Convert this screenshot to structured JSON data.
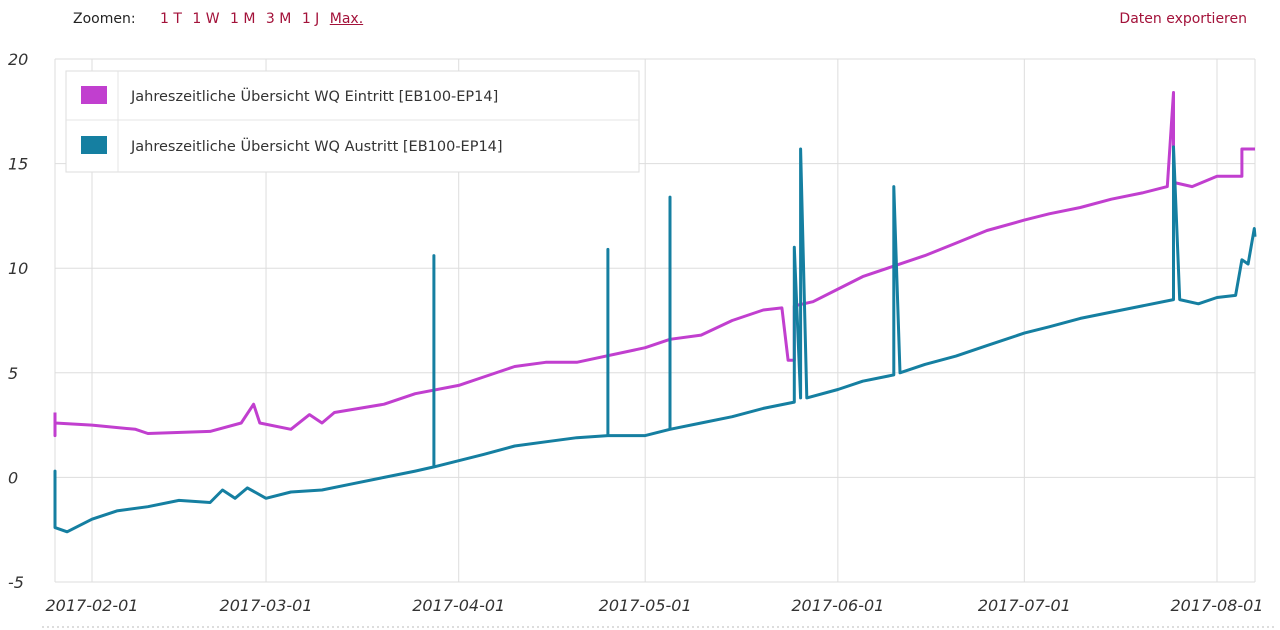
{
  "toolbar": {
    "zoom_label": "Zoomen:",
    "zoom_options": [
      "1 T",
      "1 W",
      "1 M",
      "3 M",
      "1 J",
      "Max."
    ],
    "active_zoom": "Max.",
    "export_label": "Daten exportieren"
  },
  "colors": {
    "link": "#a3123a",
    "series_eintritt": "#c13fcf",
    "series_austritt": "#157fa1",
    "grid": "#dddddd"
  },
  "chart_data": {
    "type": "line",
    "title": "",
    "xlabel": "",
    "ylabel": "",
    "ylim": [
      -5,
      20
    ],
    "yticks": [
      "20",
      "15",
      "10",
      "5",
      "0",
      "-5"
    ],
    "xticks": [
      "2017-02-01",
      "2017-03-01",
      "2017-04-01",
      "2017-05-01",
      "2017-06-01",
      "2017-07-01",
      "2017-08-01"
    ],
    "xrange": [
      "2017-01-22",
      "2017-08-03"
    ],
    "grid": true,
    "legend_position": "top-left",
    "series": [
      {
        "name": "Jahreszeitliche Übersicht WQ Eintritt [EB100-EP14]",
        "color": "#c13fcf",
        "points": [
          [
            "2017-01-22",
            3.1
          ],
          [
            "2017-01-23",
            2.2
          ],
          [
            "2017-01-24",
            2.5
          ],
          [
            "2017-01-25",
            2.0
          ],
          [
            "2017-01-26",
            2.6
          ],
          [
            "2017-02-01",
            2.5
          ],
          [
            "2017-02-08",
            2.3
          ],
          [
            "2017-02-10",
            2.1
          ],
          [
            "2017-02-20",
            2.2
          ],
          [
            "2017-02-25",
            2.6
          ],
          [
            "2017-02-27",
            3.5
          ],
          [
            "2017-02-28",
            2.6
          ],
          [
            "2017-03-05",
            2.3
          ],
          [
            "2017-03-08",
            3.0
          ],
          [
            "2017-03-10",
            2.6
          ],
          [
            "2017-03-12",
            3.1
          ],
          [
            "2017-03-20",
            3.5
          ],
          [
            "2017-03-25",
            4.0
          ],
          [
            "2017-04-01",
            4.4
          ],
          [
            "2017-04-05",
            4.8
          ],
          [
            "2017-04-10",
            5.3
          ],
          [
            "2017-04-15",
            5.5
          ],
          [
            "2017-04-20",
            5.5
          ],
          [
            "2017-05-01",
            6.2
          ],
          [
            "2017-05-05",
            6.6
          ],
          [
            "2017-05-10",
            6.8
          ],
          [
            "2017-05-15",
            7.5
          ],
          [
            "2017-05-20",
            8.0
          ],
          [
            "2017-05-23",
            8.1
          ],
          [
            "2017-05-24",
            5.6
          ],
          [
            "2017-05-25",
            5.6
          ],
          [
            "2017-05-25",
            8.2
          ],
          [
            "2017-05-28",
            8.4
          ],
          [
            "2017-06-01",
            9.0
          ],
          [
            "2017-06-05",
            9.6
          ],
          [
            "2017-06-10",
            10.1
          ],
          [
            "2017-06-15",
            10.6
          ],
          [
            "2017-06-20",
            11.2
          ],
          [
            "2017-06-25",
            11.8
          ],
          [
            "2017-07-01",
            12.3
          ],
          [
            "2017-07-05",
            12.6
          ],
          [
            "2017-07-10",
            12.9
          ],
          [
            "2017-07-15",
            13.3
          ],
          [
            "2017-07-20",
            13.6
          ],
          [
            "2017-07-24",
            13.9
          ],
          [
            "2017-07-25",
            18.4
          ],
          [
            "2017-07-25",
            14.1
          ],
          [
            "2017-07-28",
            13.9
          ],
          [
            "2017-08-01",
            14.4
          ],
          [
            "2017-08-05",
            14.4
          ],
          [
            "2017-08-05",
            15.7
          ],
          [
            "2017-08-08",
            15.7
          ]
        ]
      },
      {
        "name": "Jahreszeitliche Übersicht WQ Austritt [EB100-EP14]",
        "color": "#157fa1",
        "points": [
          [
            "2017-01-22",
            -1.6
          ],
          [
            "2017-01-23",
            -1.7
          ],
          [
            "2017-01-23",
            0.3
          ],
          [
            "2017-01-24",
            -1.5
          ],
          [
            "2017-01-25",
            0.1
          ],
          [
            "2017-01-26",
            -2.4
          ],
          [
            "2017-01-28",
            -2.6
          ],
          [
            "2017-02-01",
            -2.0
          ],
          [
            "2017-02-05",
            -1.6
          ],
          [
            "2017-02-10",
            -1.4
          ],
          [
            "2017-02-15",
            -1.1
          ],
          [
            "2017-02-20",
            -1.2
          ],
          [
            "2017-02-22",
            -0.6
          ],
          [
            "2017-02-24",
            -1.0
          ],
          [
            "2017-02-26",
            -0.5
          ],
          [
            "2017-03-01",
            -1.0
          ],
          [
            "2017-03-05",
            -0.7
          ],
          [
            "2017-03-10",
            -0.6
          ],
          [
            "2017-03-15",
            -0.3
          ],
          [
            "2017-03-20",
            0.0
          ],
          [
            "2017-03-25",
            0.3
          ],
          [
            "2017-03-28",
            0.5
          ],
          [
            "2017-03-28",
            10.6
          ],
          [
            "2017-03-28",
            0.5
          ],
          [
            "2017-04-01",
            0.8
          ],
          [
            "2017-04-05",
            1.1
          ],
          [
            "2017-04-10",
            1.5
          ],
          [
            "2017-04-15",
            1.7
          ],
          [
            "2017-04-20",
            1.9
          ],
          [
            "2017-04-25",
            2.0
          ],
          [
            "2017-04-25",
            10.9
          ],
          [
            "2017-04-25",
            2.0
          ],
          [
            "2017-05-01",
            2.0
          ],
          [
            "2017-05-05",
            2.3
          ],
          [
            "2017-05-05",
            13.4
          ],
          [
            "2017-05-05",
            2.3
          ],
          [
            "2017-05-10",
            2.6
          ],
          [
            "2017-05-15",
            2.9
          ],
          [
            "2017-05-20",
            3.3
          ],
          [
            "2017-05-25",
            3.6
          ],
          [
            "2017-05-25",
            11.0
          ],
          [
            "2017-05-26",
            3.8
          ],
          [
            "2017-05-26",
            15.7
          ],
          [
            "2017-05-27",
            3.8
          ],
          [
            "2017-06-01",
            4.2
          ],
          [
            "2017-06-05",
            4.6
          ],
          [
            "2017-06-10",
            4.9
          ],
          [
            "2017-06-10",
            13.9
          ],
          [
            "2017-06-11",
            5.0
          ],
          [
            "2017-06-15",
            5.4
          ],
          [
            "2017-06-20",
            5.8
          ],
          [
            "2017-06-25",
            6.3
          ],
          [
            "2017-07-01",
            6.9
          ],
          [
            "2017-07-05",
            7.2
          ],
          [
            "2017-07-10",
            7.6
          ],
          [
            "2017-07-15",
            7.9
          ],
          [
            "2017-07-20",
            8.2
          ],
          [
            "2017-07-25",
            8.5
          ],
          [
            "2017-07-25",
            15.8
          ],
          [
            "2017-07-26",
            8.5
          ],
          [
            "2017-07-29",
            8.3
          ],
          [
            "2017-08-01",
            8.6
          ],
          [
            "2017-08-04",
            8.7
          ],
          [
            "2017-08-05",
            10.4
          ],
          [
            "2017-08-06",
            10.2
          ],
          [
            "2017-08-07",
            11.9
          ],
          [
            "2017-08-08",
            11.5
          ]
        ]
      }
    ]
  }
}
